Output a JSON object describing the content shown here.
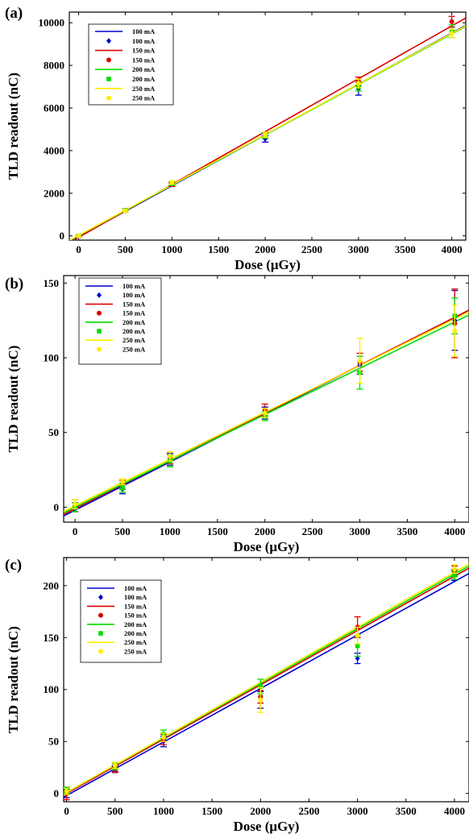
{
  "chart_data": [
    {
      "type": "scatter",
      "panel_label": "(a)",
      "xlabel": "Dose (μGy)",
      "ylabel": "TLD readout (nC)",
      "xlim": [
        -100,
        4150
      ],
      "ylim": [
        -200,
        10500
      ],
      "xticks": [
        0,
        500,
        1000,
        1500,
        2000,
        2500,
        3000,
        3500,
        4000
      ],
      "yticks": [
        0,
        2000,
        4000,
        6000,
        8000,
        10000
      ],
      "grid": false,
      "legend_position": "top-left",
      "legend": [
        "100 mA",
        "100 mA",
        "150 mA",
        "150 mA",
        "200 mA",
        "200 mA",
        "250 mA",
        "250 mA"
      ],
      "x": [
        0,
        500,
        1000,
        2000,
        3000,
        4000
      ],
      "series": [
        {
          "name": "100 mA",
          "color": "#0000cc",
          "marker": "diamond",
          "values": [
            -20,
            1180,
            2420,
            4550,
            6900,
            9550
          ],
          "errors": [
            50,
            60,
            80,
            150,
            300,
            250
          ],
          "fit": [
            -40,
            9520
          ]
        },
        {
          "name": "150 mA",
          "color": "#dd0000",
          "marker": "dot",
          "values": [
            0,
            1200,
            2400,
            4700,
            7250,
            10050
          ],
          "errors": [
            50,
            60,
            80,
            120,
            200,
            250
          ],
          "fit": [
            -70,
            9850
          ]
        },
        {
          "name": "200 mA",
          "color": "#00dd00",
          "marker": "square",
          "values": [
            0,
            1200,
            2450,
            4700,
            7000,
            9600
          ],
          "errors": [
            50,
            60,
            80,
            120,
            200,
            300
          ],
          "fit": [
            10,
            9470
          ]
        },
        {
          "name": "250 mA",
          "color": "#ffee00",
          "marker": "dot",
          "values": [
            0,
            1180,
            2500,
            4750,
            7150,
            9500
          ],
          "errors": [
            50,
            60,
            80,
            120,
            200,
            200
          ],
          "fit": [
            20,
            9500
          ]
        }
      ]
    },
    {
      "type": "scatter",
      "panel_label": "(b)",
      "xlabel": "Dose (μGy)",
      "ylabel": "TLD readout (nC)",
      "xlim": [
        -120,
        4150
      ],
      "ylim": [
        -10,
        155
      ],
      "xticks": [
        0,
        500,
        1000,
        1500,
        2000,
        2500,
        3000,
        3500,
        4000
      ],
      "yticks": [
        0,
        50,
        100,
        150
      ],
      "grid": false,
      "legend_position": "top-left",
      "legend": [
        "100 mA",
        "100 mA",
        "150 mA",
        "150 mA",
        "200 mA",
        "200 mA",
        "250 mA",
        "250 mA"
      ],
      "x": [
        0,
        500,
        1000,
        2000,
        3000,
        4000
      ],
      "series": [
        {
          "name": "100 mA",
          "color": "#0000cc",
          "marker": "diamond",
          "values": [
            0,
            12,
            32,
            63,
            95,
            125
          ],
          "errors": [
            3,
            3,
            4,
            4,
            6,
            20
          ],
          "fit": [
            -2,
            127
          ]
        },
        {
          "name": "150 mA",
          "color": "#dd0000",
          "marker": "dot",
          "values": [
            1,
            15,
            33,
            65,
            97,
            123
          ],
          "errors": [
            4,
            3,
            4,
            4,
            6,
            23
          ],
          "fit": [
            -1,
            127
          ]
        },
        {
          "name": "200 mA",
          "color": "#00dd00",
          "marker": "square",
          "values": [
            0,
            13,
            31,
            61,
            90,
            128
          ],
          "errors": [
            3,
            3,
            4,
            3,
            11,
            12
          ],
          "fit": [
            0,
            124
          ]
        },
        {
          "name": "250 mA",
          "color": "#ffee00",
          "marker": "dot",
          "values": [
            2,
            17,
            34,
            63,
            98,
            118
          ],
          "errors": [
            3,
            2,
            3,
            3,
            15,
            17
          ],
          "fit": [
            1,
            126
          ]
        }
      ]
    },
    {
      "type": "scatter",
      "panel_label": "(c)",
      "xlabel": "Dose (μGy)",
      "ylabel": "TLD readout (nC)",
      "xlim": [
        -30,
        4150
      ],
      "ylim": [
        -8,
        227
      ],
      "xticks": [
        0,
        500,
        1000,
        1500,
        2000,
        2500,
        3000,
        3500,
        4000
      ],
      "yticks": [
        0,
        50,
        100,
        150,
        200
      ],
      "grid": false,
      "legend_position": "top-left",
      "legend": [
        "100 mA",
        "100 mA",
        "150 mA",
        "150 mA",
        "200 mA",
        "200 mA",
        "250 mA",
        "250 mA"
      ],
      "x": [
        0,
        500,
        1000,
        2000,
        3000,
        4000
      ],
      "series": [
        {
          "name": "100 mA",
          "color": "#0000cc",
          "marker": "diamond",
          "values": [
            0,
            24,
            50,
            90,
            130,
            210
          ],
          "errors": [
            4,
            3,
            5,
            8,
            5,
            5
          ],
          "fit": [
            -2,
            204
          ]
        },
        {
          "name": "150 mA",
          "color": "#dd0000",
          "marker": "dot",
          "values": [
            0,
            23,
            52,
            93,
            160,
            214
          ],
          "errors": [
            6,
            3,
            5,
            6,
            10,
            5
          ],
          "fit": [
            0,
            209
          ]
        },
        {
          "name": "200 mA",
          "color": "#00dd00",
          "marker": "square",
          "values": [
            3,
            26,
            57,
            103,
            142,
            210
          ],
          "errors": [
            3,
            3,
            4,
            7,
            10,
            4
          ],
          "fit": [
            1,
            211
          ]
        },
        {
          "name": "250 mA",
          "color": "#ffee00",
          "marker": "dot",
          "values": [
            2,
            27,
            54,
            90,
            152,
            216
          ],
          "errors": [
            3,
            3,
            4,
            12,
            8,
            4
          ],
          "fit": [
            1,
            213
          ]
        }
      ]
    }
  ]
}
